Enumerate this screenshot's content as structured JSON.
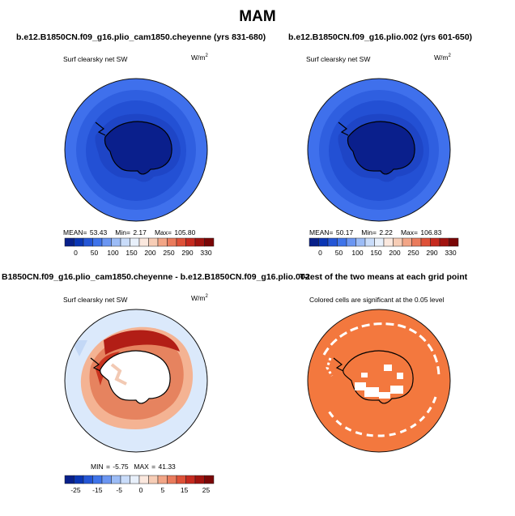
{
  "figure": {
    "title": "MAM"
  },
  "panels": [
    {
      "title": "b.e12.B1850CN.f09_g16.plio_cam1850.cheyenne (yrs 831-680)",
      "variable": "Surf clearsky net SW",
      "units_base": "W/m",
      "units_exp": "2",
      "stats": {
        "mean_label": "MEAN=",
        "mean": "53.43",
        "min_label": "Min=",
        "min": "2.17",
        "max_label": "Max=",
        "max": "105.80"
      }
    },
    {
      "title": "b.e12.B1850CN.f09_g16.plio.002 (yrs 601-650)",
      "variable": "Surf clearsky net SW",
      "units_base": "W/m",
      "units_exp": "2",
      "stats": {
        "mean_label": "MEAN=",
        "mean": "50.17",
        "min_label": "Min=",
        "min": "2.22",
        "max_label": "Max=",
        "max": "106.83"
      }
    },
    {
      "title": "B1850CN.f09_g16.plio_cam1850.cheyenne - b.e12.B1850CN.f09_g16.plio.002",
      "variable": "Surf clearsky net SW",
      "units_base": "W/m",
      "units_exp": "2",
      "stats": {
        "min_label": "MIN =",
        "min": "-5.75",
        "max_label": "MAX =",
        "max": "41.33"
      }
    },
    {
      "title": "T-test of the two means at each grid point",
      "note": "Colored cells are significant at the 0.05 level"
    }
  ],
  "colorbars": {
    "absolute": {
      "labels": [
        "0",
        "50",
        "100",
        "150",
        "200",
        "250",
        "290",
        "330"
      ],
      "colors": [
        "#08208a",
        "#0a36b4",
        "#2456d6",
        "#3f74ea",
        "#6b96f2",
        "#9cbcf6",
        "#c9dcfa",
        "#e8f0fb",
        "#fbe8de",
        "#f7cdb6",
        "#f2a586",
        "#ea7b5c",
        "#de5138",
        "#c62a1f",
        "#a1130f",
        "#7a0606"
      ]
    },
    "difference": {
      "labels": [
        "-25",
        "-15",
        "-5",
        "0",
        "5",
        "15",
        "25"
      ],
      "colors": [
        "#08208a",
        "#0a36b4",
        "#2456d6",
        "#3f74ea",
        "#6b96f2",
        "#9cbcf6",
        "#c9dcfa",
        "#e8f0fb",
        "#fbe8de",
        "#f7cdb6",
        "#f2a586",
        "#ea7b5c",
        "#de5138",
        "#c62a1f",
        "#a1130f",
        "#7a0606"
      ]
    }
  }
}
